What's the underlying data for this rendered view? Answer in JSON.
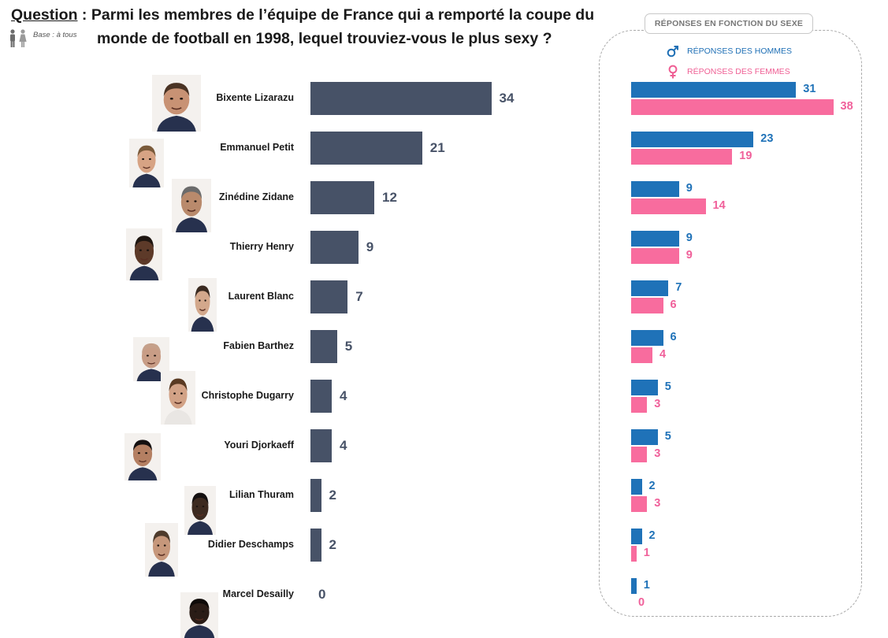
{
  "question": {
    "label": "Question",
    "text_line1": " : Parmi les membres de l’équipe de France qui a remporté la coupe du",
    "text_line2": "monde de football en 1998, lequel trouviez-vous le plus sexy ?"
  },
  "base_text": "Base : à tous",
  "panel": {
    "title": "RÉPONSES EN FONCTION DU SEXE",
    "legend_men": "RÉPONSES DES HOMMES",
    "legend_women": "RÉPONSES DES FEMMES"
  },
  "colors": {
    "total": "#475267",
    "men": "#1f72b8",
    "women": "#f86c9e"
  },
  "chart_data": [
    {
      "type": "bar",
      "orientation": "horizontal",
      "categories": [
        "Bixente Lizarazu",
        "Emmanuel Petit",
        "Zinédine Zidane",
        "Thierry Henry",
        "Laurent Blanc",
        "Fabien Barthez",
        "Christophe Dugarry",
        "Youri Djorkaeff",
        "Lilian Thuram",
        "Didier Deschamps",
        "Marcel Desailly"
      ],
      "series": [
        {
          "values": [
            34,
            21,
            12,
            9,
            7,
            5,
            4,
            4,
            2,
            2,
            0
          ]
        }
      ]
    },
    {
      "type": "bar",
      "orientation": "horizontal",
      "title": "RÉPONSES EN FONCTION DU SEXE",
      "categories": [
        "Bixente Lizarazu",
        "Emmanuel Petit",
        "Zinédine Zidane",
        "Thierry Henry",
        "Laurent Blanc",
        "Fabien Barthez",
        "Christophe Dugarry",
        "Youri Djorkaeff",
        "Lilian Thuram",
        "Didier Deschamps",
        "Marcel Desailly"
      ],
      "series": [
        {
          "name": "RÉPONSES DES HOMMES",
          "values": [
            31,
            23,
            9,
            9,
            7,
            6,
            5,
            5,
            2,
            2,
            1
          ]
        },
        {
          "name": "RÉPONSES DES FEMMES",
          "values": [
            38,
            19,
            14,
            9,
            6,
            4,
            3,
            3,
            3,
            1,
            0
          ]
        }
      ],
      "legend": "top-left"
    }
  ]
}
